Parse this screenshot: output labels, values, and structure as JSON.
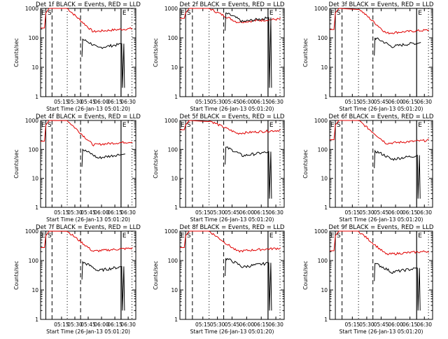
{
  "chart_data": [
    {
      "type": "line",
      "title": "Det 1f BLACK = Events, RED = LLD",
      "ylabel": "Counts/sec",
      "xlabel": "Start Time (26-Jan-13 05:01:20)",
      "x_ticks": [
        "05:15",
        "05:30",
        "05:45",
        "06:00",
        "06:15",
        "06:30"
      ],
      "y_ticks": [
        "1",
        "10",
        "100",
        "1000"
      ],
      "ylim": [
        1,
        1000
      ],
      "y_scale": "log",
      "flags": [
        "E",
        "S",
        "E"
      ],
      "red_level": 180,
      "black_level": 45,
      "black_end": "drop"
    },
    {
      "type": "line",
      "title": "Det 2f BLACK = Events, RED = LLD",
      "ylabel": "Counts/sec",
      "xlabel": "Start Time (26-Jan-13 05:01:20)",
      "x_ticks": [
        "05:15",
        "05:30",
        "05:45",
        "06:00",
        "06:15",
        "06:30"
      ],
      "y_ticks": [
        "1",
        "10",
        "100",
        "1000"
      ],
      "ylim": [
        1,
        1000
      ],
      "y_scale": "log",
      "flags": [
        "E",
        "S",
        "E"
      ],
      "red_level": 380,
      "black_level": 350,
      "black_end": "drop"
    },
    {
      "type": "line",
      "title": "Det 3f BLACK = Events, RED = LLD",
      "ylabel": "Counts/sec",
      "xlabel": "Start Time (26-Jan-13 05:01:20)",
      "x_ticks": [
        "05:15",
        "05:30",
        "05:45",
        "06:00",
        "06:15",
        "06:30"
      ],
      "y_ticks": [
        "1",
        "10",
        "100",
        "1000"
      ],
      "ylim": [
        1,
        1000
      ],
      "y_scale": "log",
      "flags": [
        "E",
        "S",
        "E"
      ],
      "red_level": 160,
      "black_level": 50,
      "black_end": "flat"
    },
    {
      "type": "line",
      "title": "Det 4f BLACK = Events, RED = LLD",
      "ylabel": "Counts/sec",
      "xlabel": "Start Time (26-Jan-13 05:01:20)",
      "x_ticks": [
        "05:15",
        "05:30",
        "05:45",
        "06:00",
        "06:15",
        "06:30"
      ],
      "y_ticks": [
        "1",
        "10",
        "100",
        "1000"
      ],
      "ylim": [
        1,
        1000
      ],
      "y_scale": "log",
      "flags": [
        "E",
        "S",
        "E"
      ],
      "red_level": 160,
      "black_level": 50,
      "black_end": "flat"
    },
    {
      "type": "line",
      "title": "Det 5f BLACK = Events, RED = LLD",
      "ylabel": "Counts/sec",
      "xlabel": "Start Time (26-Jan-13 05:01:20)",
      "x_ticks": [
        "05:15",
        "05:30",
        "05:45",
        "06:00",
        "06:15",
        "06:30"
      ],
      "y_ticks": [
        "1",
        "10",
        "100",
        "1000"
      ],
      "ylim": [
        1,
        1000
      ],
      "y_scale": "log",
      "flags": [
        "E",
        "S",
        "E"
      ],
      "red_level": 400,
      "black_level": 60,
      "black_end": "drop"
    },
    {
      "type": "line",
      "title": "Det 6f BLACK = Events, RED = LLD",
      "ylabel": "Counts/sec",
      "xlabel": "Start Time (26-Jan-13 05:01:20)",
      "x_ticks": [
        "05:15",
        "05:30",
        "05:45",
        "06:00",
        "06:15",
        "06:30"
      ],
      "y_ticks": [
        "1",
        "10",
        "100",
        "1000"
      ],
      "ylim": [
        1,
        1000
      ],
      "y_scale": "log",
      "flags": [
        "E",
        "S",
        "E"
      ],
      "red_level": 180,
      "black_level": 45,
      "black_end": "drop"
    },
    {
      "type": "line",
      "title": "Det 7f BLACK = Events, RED = LLD",
      "ylabel": "Counts/sec",
      "xlabel": "Start Time (26-Jan-13 05:01:20)",
      "x_ticks": [
        "05:15",
        "05:30",
        "05:45",
        "06:00",
        "06:15",
        "06:30"
      ],
      "y_ticks": [
        "1",
        "10",
        "100",
        "1000"
      ],
      "ylim": [
        1,
        1000
      ],
      "y_scale": "log",
      "flags": [
        "E",
        "S",
        "E"
      ],
      "red_level": 230,
      "black_level": 45,
      "black_end": "drop"
    },
    {
      "type": "line",
      "title": "Det 8f BLACK = Events, RED = LLD",
      "ylabel": "Counts/sec",
      "xlabel": "Start Time (26-Jan-13 05:01:20)",
      "x_ticks": [
        "05:15",
        "05:30",
        "05:45",
        "06:00",
        "06:15",
        "06:30"
      ],
      "y_ticks": [
        "1",
        "10",
        "100",
        "1000"
      ],
      "ylim": [
        1,
        1000
      ],
      "y_scale": "log",
      "flags": [
        "E",
        "S",
        "E"
      ],
      "red_level": 230,
      "black_level": 60,
      "black_end": "drop"
    },
    {
      "type": "line",
      "title": "Det 9f BLACK = Events, RED = LLD",
      "ylabel": "Counts/sec",
      "xlabel": "Start Time (26-Jan-13 05:01:20)",
      "x_ticks": [
        "05:15",
        "05:30",
        "05:45",
        "06:00",
        "06:15",
        "06:30"
      ],
      "y_ticks": [
        "1",
        "10",
        "100",
        "1000"
      ],
      "ylim": [
        1,
        1000
      ],
      "y_scale": "log",
      "flags": [
        "E",
        "S",
        "E"
      ],
      "red_level": 180,
      "black_level": 40,
      "black_end": "drop"
    }
  ],
  "colors": {
    "events": "#000000",
    "lld": "#e00000",
    "axis": "#000000"
  }
}
